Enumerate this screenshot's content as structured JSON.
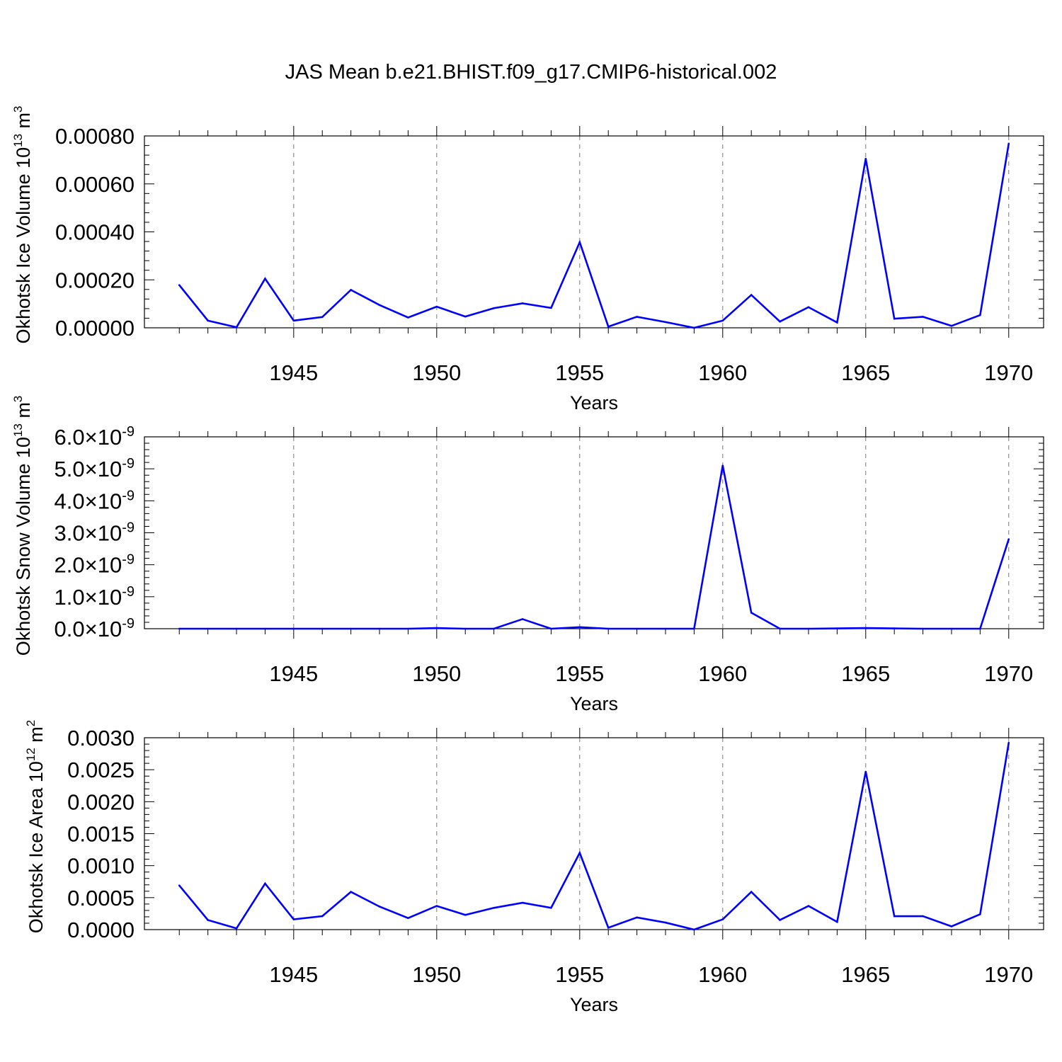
{
  "title": "JAS Mean b.e21.BHIST.f09_g17.CMIP6-historical.002",
  "chart_data": [
    {
      "type": "line",
      "xlabel": "Years",
      "ylabel": "Okhotsk Ice Volume 10",
      "ylabel_exp": "13",
      "ylabel_unit": " m",
      "ylabel_unit_exp": "3",
      "x": [
        1941,
        1942,
        1943,
        1944,
        1945,
        1946,
        1947,
        1948,
        1949,
        1950,
        1951,
        1952,
        1953,
        1954,
        1955,
        1956,
        1957,
        1958,
        1959,
        1960,
        1961,
        1962,
        1963,
        1964,
        1965,
        1966,
        1967,
        1968,
        1969,
        1970
      ],
      "values": [
        0.000178,
        3e-05,
        2e-06,
        0.000205,
        3e-05,
        4.5e-05,
        0.000158,
        9.5e-05,
        4.3e-05,
        8.8e-05,
        4.7e-05,
        8.2e-05,
        0.000102,
        8.3e-05,
        0.000357,
        5e-06,
        4.6e-05,
        2.4e-05,
        0.0,
        3e-05,
        0.000137,
        2.6e-05,
        8.6e-05,
        2.2e-05,
        0.000705,
        3.8e-05,
        4.6e-05,
        8e-06,
        5.3e-05,
        0.000768
      ],
      "xlim": [
        1940.4,
        1970.6
      ],
      "ylim": [
        0.0,
        0.0008
      ],
      "xticks": [
        1945,
        1950,
        1955,
        1960,
        1965,
        1970
      ],
      "xtick_labels": [
        "1945",
        "1950",
        "1955",
        "1960",
        "1965",
        "1970"
      ],
      "yticks": [
        0.0,
        0.0002,
        0.0004,
        0.0006,
        0.0008
      ],
      "ytick_labels": [
        "0.00000",
        "0.00020",
        "0.00040",
        "0.00060",
        "0.00080"
      ],
      "line_color": "#0000ff"
    },
    {
      "type": "line",
      "xlabel": "Years",
      "ylabel": "Okhotsk Snow Volume 10",
      "ylabel_exp": "13",
      "ylabel_unit": " m",
      "ylabel_unit_exp": "3",
      "x": [
        1941,
        1942,
        1943,
        1944,
        1945,
        1946,
        1947,
        1948,
        1949,
        1950,
        1951,
        1952,
        1953,
        1954,
        1955,
        1956,
        1957,
        1958,
        1959,
        1960,
        1961,
        1962,
        1963,
        1964,
        1965,
        1966,
        1967,
        1968,
        1969,
        1970
      ],
      "values": [
        0.0,
        0.0,
        0.0,
        0.0,
        0.0,
        0.0,
        0.0,
        0.0,
        0.0,
        0.02,
        0.0,
        0.0,
        0.3,
        0.0,
        0.05,
        0.0,
        0.0,
        0.0,
        0.0,
        5.1,
        0.5,
        0.0,
        0.0,
        0.01,
        0.02,
        0.01,
        0.0,
        0.0,
        0.0,
        2.8
      ],
      "value_multiplier": "10^-9",
      "xlim": [
        1940.4,
        1970.6
      ],
      "ylim": [
        0.0,
        6.0
      ],
      "xticks": [
        1945,
        1950,
        1955,
        1960,
        1965,
        1970
      ],
      "xtick_labels": [
        "1945",
        "1950",
        "1955",
        "1960",
        "1965",
        "1970"
      ],
      "yticks": [
        0.0,
        1.0,
        2.0,
        3.0,
        4.0,
        5.0,
        6.0
      ],
      "ytick_labels": [
        "0.0",
        "1.0",
        "2.0",
        "3.0",
        "4.0",
        "5.0",
        "6.0"
      ],
      "ytick_suffix": "×10",
      "ytick_suffix_exp": "-9",
      "line_color": "#0000ff"
    },
    {
      "type": "line",
      "xlabel": "Years",
      "ylabel": "Okhotsk Ice Area 10",
      "ylabel_exp": "12",
      "ylabel_unit": " m",
      "ylabel_unit_exp": "2",
      "x": [
        1941,
        1942,
        1943,
        1944,
        1945,
        1946,
        1947,
        1948,
        1949,
        1950,
        1951,
        1952,
        1953,
        1954,
        1955,
        1956,
        1957,
        1958,
        1959,
        1960,
        1961,
        1962,
        1963,
        1964,
        1965,
        1966,
        1967,
        1968,
        1969,
        1970
      ],
      "values": [
        0.00069,
        0.00015,
        2e-05,
        0.00072,
        0.00016,
        0.00021,
        0.00059,
        0.00036,
        0.00018,
        0.00037,
        0.00023,
        0.00034,
        0.00042,
        0.00034,
        0.0012,
        3e-05,
        0.00019,
        0.00011,
        0.0,
        0.00016,
        0.00059,
        0.00015,
        0.00037,
        0.00012,
        0.00247,
        0.00021,
        0.00021,
        5e-05,
        0.00024,
        0.00292
      ],
      "xlim": [
        1940.4,
        1970.6
      ],
      "ylim": [
        0.0,
        0.003
      ],
      "xticks": [
        1945,
        1950,
        1955,
        1960,
        1965,
        1970
      ],
      "xtick_labels": [
        "1945",
        "1950",
        "1955",
        "1960",
        "1965",
        "1970"
      ],
      "yticks": [
        0.0,
        0.0005,
        0.001,
        0.0015,
        0.002,
        0.0025,
        0.003
      ],
      "ytick_labels": [
        "0.0000",
        "0.0005",
        "0.0010",
        "0.0015",
        "0.0020",
        "0.0025",
        "0.0030"
      ],
      "line_color": "#0000ff"
    }
  ]
}
